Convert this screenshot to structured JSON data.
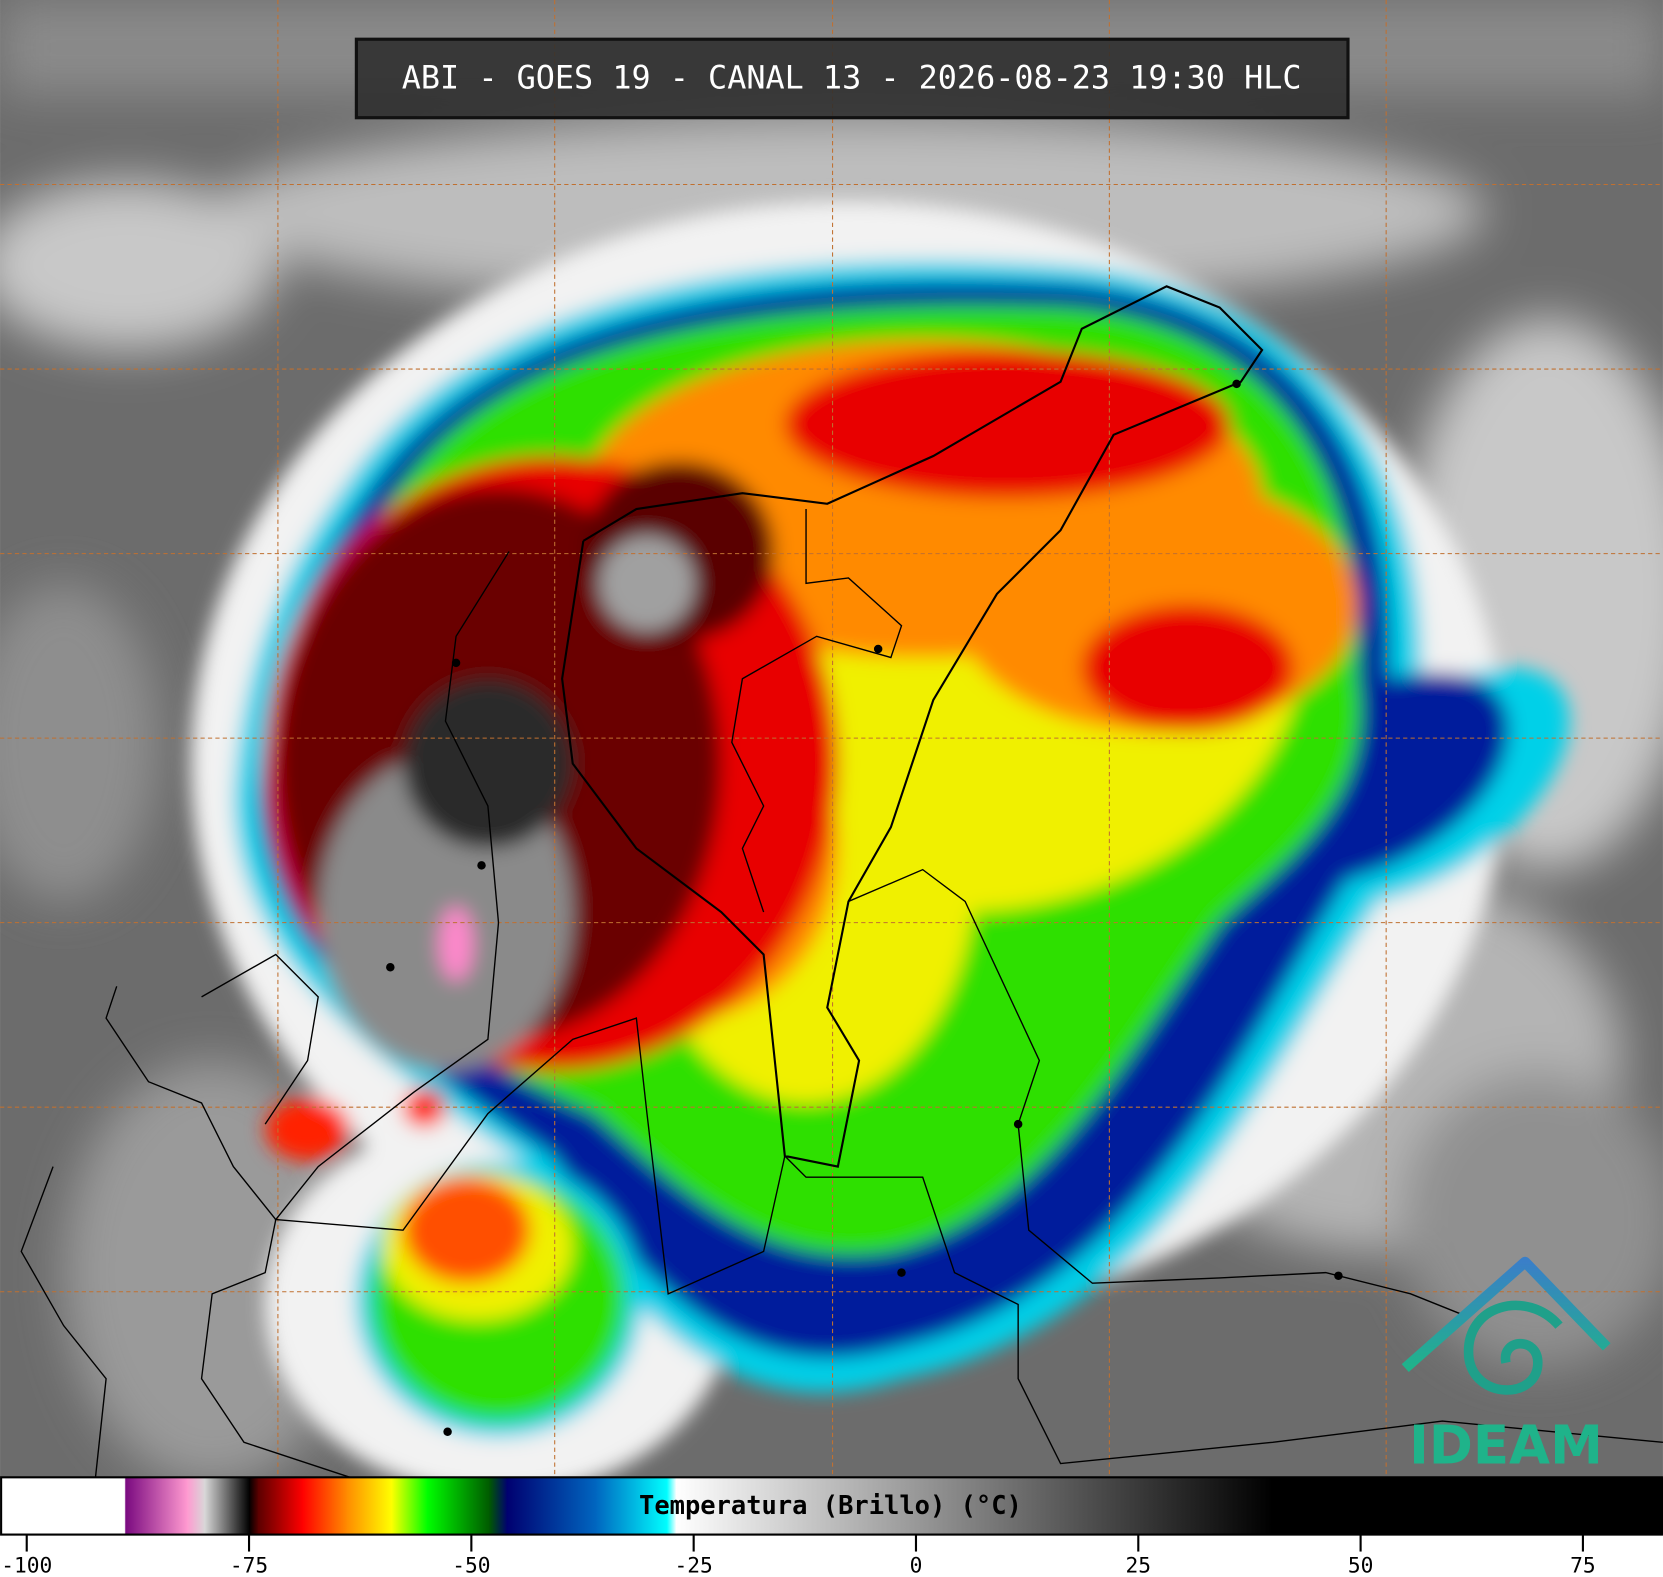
{
  "header": {
    "title": "ABI - GOES 19 - CANAL 13 - 2026-08-23 19:30 HLC"
  },
  "colorbar": {
    "label": "Temperatura (Brillo) (°C)",
    "lim": [
      -103,
      84
    ],
    "ticks": [
      -100,
      -75,
      -50,
      -25,
      0,
      25,
      50,
      75
    ],
    "stops": [
      {
        "value": -103,
        "color": "#ffffff"
      },
      {
        "value": -89,
        "color": "#ffffff"
      },
      {
        "value": -88.9,
        "color": "#7a0a80"
      },
      {
        "value": -82,
        "color": "#ff99d0"
      },
      {
        "value": -80,
        "color": "#d8d8d8"
      },
      {
        "value": -75,
        "color": "#000000"
      },
      {
        "value": -74,
        "color": "#5a0000"
      },
      {
        "value": -69,
        "color": "#ff0000"
      },
      {
        "value": -64,
        "color": "#ff8c00"
      },
      {
        "value": -59,
        "color": "#ffff00"
      },
      {
        "value": -55,
        "color": "#00ff00"
      },
      {
        "value": -48,
        "color": "#005a00"
      },
      {
        "value": -46,
        "color": "#000070"
      },
      {
        "value": -36,
        "color": "#0066c0"
      },
      {
        "value": -28,
        "color": "#00ffff"
      },
      {
        "value": -27,
        "color": "#ffffff"
      },
      {
        "value": 40,
        "color": "#000000"
      },
      {
        "value": 84,
        "color": "#000000"
      }
    ]
  },
  "logo": {
    "text": "IDEAM"
  }
}
